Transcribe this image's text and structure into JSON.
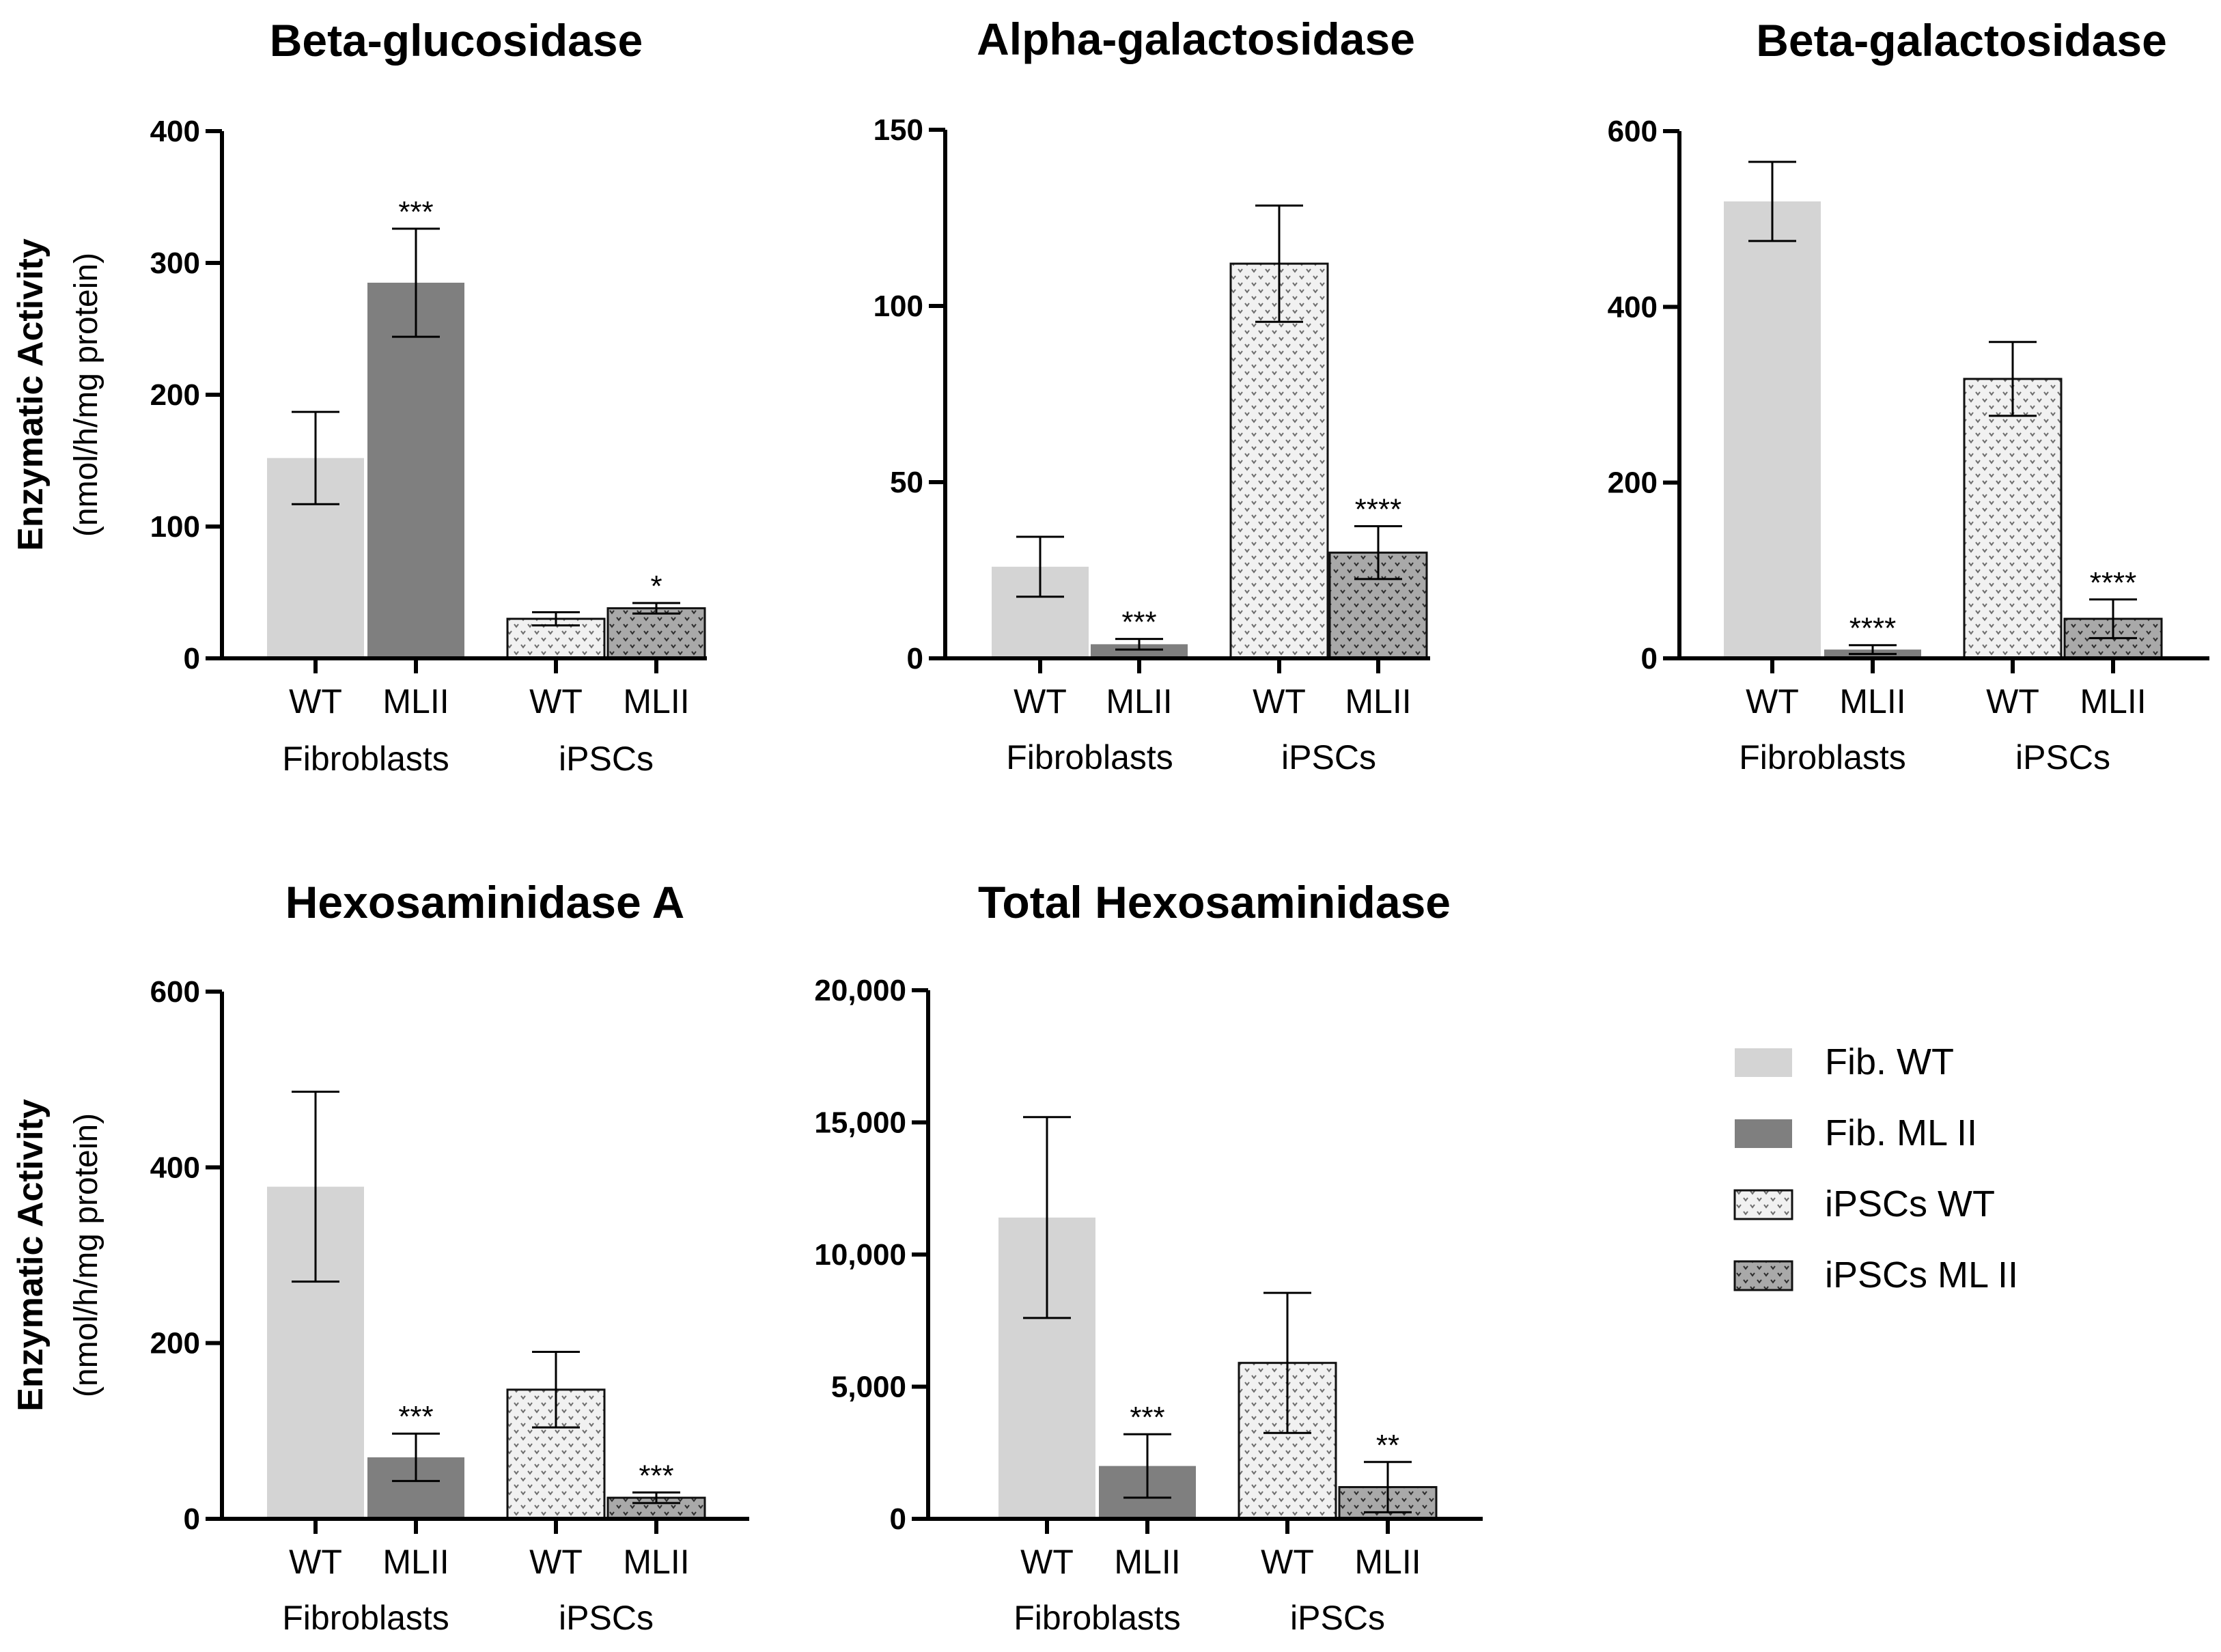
{
  "y_label_main": "Enzymatic Activity",
  "y_label_sub": "(nmol/h/mg protein)",
  "legend": {
    "items": [
      {
        "label": "Fib. WT",
        "style": "fibwt"
      },
      {
        "label": "Fib. ML II",
        "style": "fibml"
      },
      {
        "label": "iPSCs WT",
        "style": "ipswt"
      },
      {
        "label": "iPSCs ML II",
        "style": "ipsml"
      }
    ]
  },
  "colors": {
    "fib_wt": "#d4d4d4",
    "fib_ml": "#7f7f7f",
    "ips_wt": "#f1f1f1",
    "ips_ml": "#a9a9a9",
    "axis": "#000000"
  },
  "chart_data": [
    {
      "type": "bar",
      "title": "Beta-glucosidase",
      "categories": [
        "WT",
        "MLII",
        "WT",
        "MLII"
      ],
      "groups": [
        "Fibroblasts",
        "iPSCs"
      ],
      "values": [
        152,
        285,
        30,
        38
      ],
      "errors": [
        35,
        41,
        5,
        4
      ],
      "significance": [
        "",
        "***",
        "",
        "*"
      ],
      "ylim": [
        0,
        400
      ],
      "yticks": [
        0,
        100,
        200,
        300,
        400
      ],
      "ytick_labels": [
        "0",
        "100",
        "200",
        "300",
        "400"
      ]
    },
    {
      "type": "bar",
      "title": "Alpha-galactosidase",
      "categories": [
        "WT",
        "MLII",
        "WT",
        "MLII"
      ],
      "groups": [
        "Fibroblasts",
        "iPSCs"
      ],
      "values": [
        26,
        4,
        112,
        30
      ],
      "errors": [
        8.5,
        1.5,
        16.5,
        7.5
      ],
      "significance": [
        "",
        "***",
        "",
        "****"
      ],
      "ylim": [
        0,
        150
      ],
      "yticks": [
        0,
        50,
        100,
        150
      ],
      "ytick_labels": [
        "0",
        "50",
        "100",
        "150"
      ]
    },
    {
      "type": "bar",
      "title": "Beta-galactosidase",
      "categories": [
        "WT",
        "MLII",
        "WT",
        "MLII"
      ],
      "groups": [
        "Fibroblasts",
        "iPSCs"
      ],
      "values": [
        520,
        10,
        318,
        45
      ],
      "errors": [
        45,
        5,
        42,
        22
      ],
      "significance": [
        "",
        "****",
        "",
        "****"
      ],
      "ylim": [
        0,
        600
      ],
      "yticks": [
        0,
        200,
        400,
        600
      ],
      "ytick_labels": [
        "0",
        "200",
        "400",
        "600"
      ]
    },
    {
      "type": "bar",
      "title": "Hexosaminidase A",
      "categories": [
        "WT",
        "MLII",
        "WT",
        "MLII"
      ],
      "groups": [
        "Fibroblasts",
        "iPSCs"
      ],
      "values": [
        378,
        70,
        147,
        24
      ],
      "errors": [
        108,
        27,
        43,
        6
      ],
      "significance": [
        "",
        "***",
        "",
        "***"
      ],
      "ylim": [
        0,
        600
      ],
      "yticks": [
        0,
        200,
        400,
        600
      ],
      "ytick_labels": [
        "0",
        "200",
        "400",
        "600"
      ]
    },
    {
      "type": "bar",
      "title": "Total Hexosaminidase",
      "categories": [
        "WT",
        "MLII",
        "WT",
        "MLII"
      ],
      "groups": [
        "Fibroblasts",
        "iPSCs"
      ],
      "values": [
        11400,
        2000,
        5900,
        1200
      ],
      "errors": [
        3800,
        1200,
        2650,
        950
      ],
      "significance": [
        "",
        "***",
        "",
        "**"
      ],
      "ylim": [
        0,
        20000
      ],
      "yticks": [
        0,
        5000,
        10000,
        15000,
        20000
      ],
      "ytick_labels": [
        "0",
        "5,000",
        "10,000",
        "15,000",
        "20,000"
      ]
    }
  ]
}
